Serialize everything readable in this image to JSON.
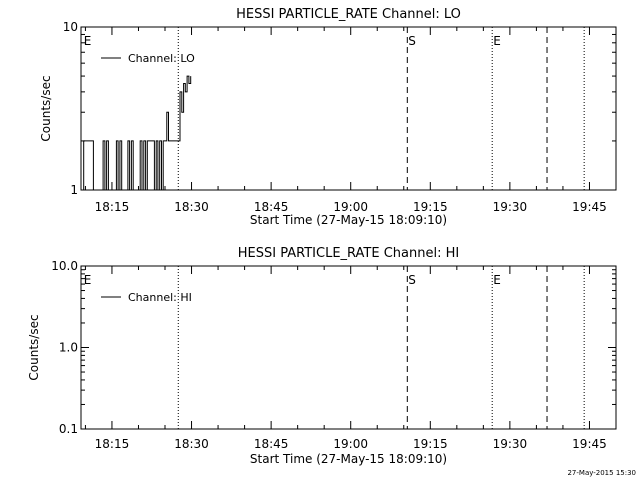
{
  "footer": {
    "timestamp": "27-May-2015 15:30"
  },
  "chart_data": [
    {
      "type": "line",
      "title": "HESSI PARTICLE_RATE Channel: LO",
      "xlabel": "Start Time (27-May-15 18:09:10)",
      "ylabel": "Counts/sec",
      "yscale": "log",
      "ylim": [
        1,
        10
      ],
      "xlim": [
        "18:09:10",
        "19:50:00"
      ],
      "y_tick_labels": [
        "1",
        "10"
      ],
      "x_ticks": [
        "18:15",
        "18:30",
        "18:45",
        "19:00",
        "19:15",
        "19:30",
        "19:45"
      ],
      "grid": false,
      "legend": {
        "position": "top-left",
        "entries": [
          "Channel: LO"
        ]
      },
      "vertical_markers": [
        {
          "time": "18:09:30",
          "style": "none",
          "label": "E"
        },
        {
          "time": "18:27:30",
          "style": "dotted",
          "label": ""
        },
        {
          "time": "19:10:40",
          "style": "dashed",
          "label": "S"
        },
        {
          "time": "19:26:40",
          "style": "dotted",
          "label": "E"
        },
        {
          "time": "19:37:00",
          "style": "dashed",
          "label": ""
        },
        {
          "time": "19:44:00",
          "style": "dotted",
          "label": ""
        }
      ],
      "series": [
        {
          "name": "Channel: LO",
          "x": [
            "18:09:10",
            "18:09:40",
            "18:10:00",
            "18:11:10",
            "18:11:30",
            "18:13:00",
            "18:13:20",
            "18:13:40",
            "18:14:00",
            "18:14:20",
            "18:15:30",
            "18:15:50",
            "18:16:10",
            "18:16:30",
            "18:16:50",
            "18:17:40",
            "18:18:00",
            "18:18:20",
            "18:18:40",
            "18:19:00",
            "18:20:00",
            "18:20:20",
            "18:20:40",
            "18:21:00",
            "18:21:20",
            "18:21:40",
            "18:23:00",
            "18:23:20",
            "18:23:40",
            "18:24:00",
            "18:24:20",
            "18:24:40",
            "18:25:00",
            "18:25:20",
            "18:25:40",
            "18:26:00",
            "18:26:20",
            "18:27:30",
            "18:27:50",
            "18:28:10",
            "18:28:30",
            "18:28:50",
            "18:29:10",
            "18:29:30",
            "18:29:50"
          ],
          "y": [
            1,
            2,
            2,
            2,
            1,
            1,
            2,
            1,
            2,
            1,
            1,
            2,
            1,
            2,
            1,
            1,
            2,
            1,
            2,
            1,
            1,
            2,
            1,
            2,
            1,
            2,
            1,
            2,
            1,
            2,
            1,
            2,
            2,
            3,
            2,
            2,
            2,
            2,
            4,
            3,
            4.5,
            4,
            5,
            4.5,
            5
          ]
        }
      ]
    },
    {
      "type": "line",
      "title": "HESSI PARTICLE_RATE Channel: HI",
      "xlabel": "Start Time (27-May-15 18:09:10)",
      "ylabel": "Counts/sec",
      "yscale": "log",
      "ylim": [
        0.1,
        10
      ],
      "xlim": [
        "18:09:10",
        "19:50:00"
      ],
      "y_tick_labels": [
        "0.1",
        "1.0",
        "10.0"
      ],
      "x_ticks": [
        "18:15",
        "18:30",
        "18:45",
        "19:00",
        "19:15",
        "19:30",
        "19:45"
      ],
      "grid": false,
      "legend": {
        "position": "top-left",
        "entries": [
          "Channel: HI"
        ]
      },
      "vertical_markers": [
        {
          "time": "18:09:30",
          "style": "none",
          "label": "E"
        },
        {
          "time": "18:27:30",
          "style": "dotted",
          "label": ""
        },
        {
          "time": "19:10:40",
          "style": "dashed",
          "label": "S"
        },
        {
          "time": "19:26:40",
          "style": "dotted",
          "label": "E"
        },
        {
          "time": "19:37:00",
          "style": "dashed",
          "label": ""
        },
        {
          "time": "19:44:00",
          "style": "dotted",
          "label": ""
        }
      ],
      "series": [
        {
          "name": "Channel: HI",
          "x": [],
          "y": []
        }
      ]
    }
  ]
}
